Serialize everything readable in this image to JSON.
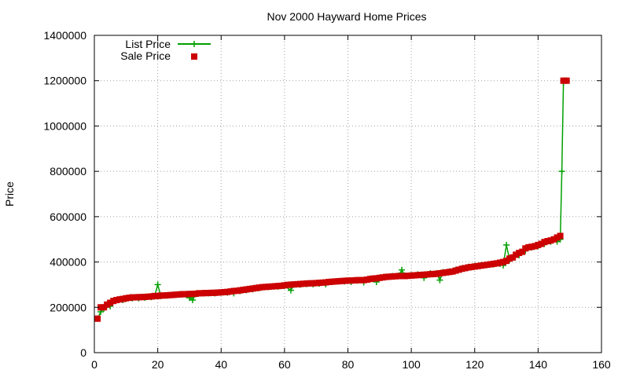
{
  "chart_data": {
    "type": "line",
    "title": "Nov 2000 Hayward Home Prices",
    "xlabel": "",
    "ylabel": "Price",
    "xlim": [
      0,
      160
    ],
    "ylim": [
      0,
      1400000
    ],
    "x_ticks": [
      0,
      20,
      40,
      60,
      80,
      100,
      120,
      140,
      160
    ],
    "y_ticks": [
      0,
      200000,
      400000,
      600000,
      800000,
      1000000,
      1200000,
      1400000
    ],
    "grid": true,
    "legend_position": "top-left",
    "series": [
      {
        "name": "List Price",
        "style": "line+plus",
        "color": "#00a000",
        "points": [
          [
            1,
            150000
          ],
          [
            2,
            180000
          ],
          [
            3,
            195000
          ],
          [
            4,
            210000
          ],
          [
            5,
            205000
          ],
          [
            6,
            228000
          ],
          [
            7,
            232000
          ],
          [
            8,
            235000
          ],
          [
            9,
            232000
          ],
          [
            10,
            238000
          ],
          [
            12,
            240000
          ],
          [
            14,
            240000
          ],
          [
            16,
            242000
          ],
          [
            18,
            245000
          ],
          [
            19,
            248000
          ],
          [
            20,
            300000
          ],
          [
            21,
            250000
          ],
          [
            23,
            252000
          ],
          [
            25,
            255000
          ],
          [
            27,
            258000
          ],
          [
            29,
            255000
          ],
          [
            30,
            242000
          ],
          [
            31,
            232000
          ],
          [
            32,
            258000
          ],
          [
            34,
            262000
          ],
          [
            36,
            262000
          ],
          [
            38,
            262000
          ],
          [
            40,
            265000
          ],
          [
            42,
            265000
          ],
          [
            44,
            262000
          ],
          [
            46,
            272000
          ],
          [
            48,
            276000
          ],
          [
            50,
            280000
          ],
          [
            52,
            285000
          ],
          [
            55,
            290000
          ],
          [
            58,
            292000
          ],
          [
            60,
            295000
          ],
          [
            62,
            275000
          ],
          [
            63,
            300000
          ],
          [
            65,
            300000
          ],
          [
            67,
            303000
          ],
          [
            69,
            302000
          ],
          [
            71,
            305000
          ],
          [
            73,
            302000
          ],
          [
            75,
            312000
          ],
          [
            77,
            315000
          ],
          [
            79,
            315000
          ],
          [
            81,
            312000
          ],
          [
            83,
            318000
          ],
          [
            85,
            310000
          ],
          [
            87,
            325000
          ],
          [
            89,
            312000
          ],
          [
            90,
            330000
          ],
          [
            92,
            335000
          ],
          [
            94,
            338000
          ],
          [
            96,
            340000
          ],
          [
            97,
            365000
          ],
          [
            98,
            340000
          ],
          [
            100,
            342000
          ],
          [
            102,
            345000
          ],
          [
            104,
            330000
          ],
          [
            106,
            350000
          ],
          [
            108,
            350000
          ],
          [
            109,
            320000
          ],
          [
            110,
            355000
          ],
          [
            112,
            358000
          ],
          [
            114,
            365000
          ],
          [
            116,
            372000
          ],
          [
            118,
            378000
          ],
          [
            120,
            382000
          ],
          [
            122,
            385000
          ],
          [
            124,
            388000
          ],
          [
            126,
            390000
          ],
          [
            128,
            392000
          ],
          [
            129,
            385000
          ],
          [
            130,
            475000
          ],
          [
            131,
            410000
          ],
          [
            132,
            420000
          ],
          [
            134,
            430000
          ],
          [
            136,
            450000
          ],
          [
            138,
            465000
          ],
          [
            140,
            470000
          ],
          [
            142,
            480000
          ],
          [
            144,
            490000
          ],
          [
            146,
            490000
          ],
          [
            147,
            500000
          ],
          [
            147.5,
            800000
          ],
          [
            148,
            1190000
          ],
          [
            149,
            1200000
          ]
        ]
      },
      {
        "name": "Sale Price",
        "style": "square",
        "color": "#cc0000",
        "points": [
          [
            1,
            150000
          ],
          [
            2,
            200000
          ],
          [
            3,
            200000
          ],
          [
            4,
            212000
          ],
          [
            5,
            220000
          ],
          [
            6,
            228000
          ],
          [
            7,
            232000
          ],
          [
            8,
            235000
          ],
          [
            9,
            237000
          ],
          [
            10,
            240000
          ],
          [
            11,
            242000
          ],
          [
            12,
            244000
          ],
          [
            13,
            244000
          ],
          [
            14,
            245000
          ],
          [
            15,
            245000
          ],
          [
            16,
            246000
          ],
          [
            17,
            247000
          ],
          [
            18,
            248000
          ],
          [
            19,
            250000
          ],
          [
            20,
            250000
          ],
          [
            21,
            252000
          ],
          [
            22,
            252000
          ],
          [
            23,
            253000
          ],
          [
            24,
            254000
          ],
          [
            25,
            255000
          ],
          [
            26,
            256000
          ],
          [
            27,
            257000
          ],
          [
            28,
            258000
          ],
          [
            29,
            258000
          ],
          [
            30,
            259000
          ],
          [
            31,
            259000
          ],
          [
            32,
            260000
          ],
          [
            33,
            262000
          ],
          [
            34,
            262000
          ],
          [
            35,
            263000
          ],
          [
            36,
            263000
          ],
          [
            37,
            264000
          ],
          [
            38,
            264000
          ],
          [
            39,
            265000
          ],
          [
            40,
            266000
          ],
          [
            41,
            267000
          ],
          [
            42,
            268000
          ],
          [
            43,
            270000
          ],
          [
            44,
            272000
          ],
          [
            45,
            273000
          ],
          [
            46,
            275000
          ],
          [
            47,
            277000
          ],
          [
            48,
            279000
          ],
          [
            49,
            281000
          ],
          [
            50,
            283000
          ],
          [
            51,
            285000
          ],
          [
            52,
            287000
          ],
          [
            53,
            289000
          ],
          [
            54,
            290000
          ],
          [
            55,
            291000
          ],
          [
            56,
            292000
          ],
          [
            57,
            293000
          ],
          [
            58,
            294000
          ],
          [
            59,
            295000
          ],
          [
            60,
            297000
          ],
          [
            61,
            299000
          ],
          [
            62,
            300000
          ],
          [
            63,
            301000
          ],
          [
            64,
            302000
          ],
          [
            65,
            303000
          ],
          [
            66,
            304000
          ],
          [
            67,
            305000
          ],
          [
            68,
            306000
          ],
          [
            69,
            306000
          ],
          [
            70,
            307000
          ],
          [
            71,
            308000
          ],
          [
            72,
            309000
          ],
          [
            73,
            310000
          ],
          [
            74,
            312000
          ],
          [
            75,
            313000
          ],
          [
            76,
            314000
          ],
          [
            77,
            315000
          ],
          [
            78,
            316000
          ],
          [
            79,
            317000
          ],
          [
            80,
            318000
          ],
          [
            81,
            318000
          ],
          [
            82,
            319000
          ],
          [
            83,
            320000
          ],
          [
            84,
            320000
          ],
          [
            85,
            320000
          ],
          [
            86,
            322000
          ],
          [
            87,
            325000
          ],
          [
            88,
            327000
          ],
          [
            89,
            328000
          ],
          [
            90,
            330000
          ],
          [
            91,
            332000
          ],
          [
            92,
            334000
          ],
          [
            93,
            335000
          ],
          [
            94,
            336000
          ],
          [
            95,
            337000
          ],
          [
            96,
            338000
          ],
          [
            97,
            338000
          ],
          [
            98,
            338000
          ],
          [
            99,
            339000
          ],
          [
            100,
            340000
          ],
          [
            101,
            341000
          ],
          [
            102,
            342000
          ],
          [
            103,
            343000
          ],
          [
            104,
            344000
          ],
          [
            105,
            345000
          ],
          [
            106,
            346000
          ],
          [
            107,
            347000
          ],
          [
            108,
            348000
          ],
          [
            109,
            350000
          ],
          [
            110,
            352000
          ],
          [
            111,
            354000
          ],
          [
            112,
            356000
          ],
          [
            113,
            358000
          ],
          [
            114,
            362000
          ],
          [
            115,
            366000
          ],
          [
            116,
            370000
          ],
          [
            117,
            373000
          ],
          [
            118,
            376000
          ],
          [
            119,
            378000
          ],
          [
            120,
            380000
          ],
          [
            121,
            382000
          ],
          [
            122,
            384000
          ],
          [
            123,
            386000
          ],
          [
            124,
            388000
          ],
          [
            125,
            390000
          ],
          [
            126,
            392000
          ],
          [
            127,
            394000
          ],
          [
            128,
            397000
          ],
          [
            129,
            400000
          ],
          [
            130,
            405000
          ],
          [
            131,
            415000
          ],
          [
            132,
            420000
          ],
          [
            133,
            432000
          ],
          [
            134,
            440000
          ],
          [
            135,
            445000
          ],
          [
            136,
            460000
          ],
          [
            137,
            465000
          ],
          [
            138,
            467000
          ],
          [
            139,
            470000
          ],
          [
            140,
            475000
          ],
          [
            141,
            480000
          ],
          [
            142,
            488000
          ],
          [
            143,
            492000
          ],
          [
            144,
            495000
          ],
          [
            145,
            500000
          ],
          [
            146,
            508000
          ],
          [
            147,
            515000
          ],
          [
            148,
            1200000
          ],
          [
            149,
            1200000
          ]
        ]
      }
    ]
  }
}
